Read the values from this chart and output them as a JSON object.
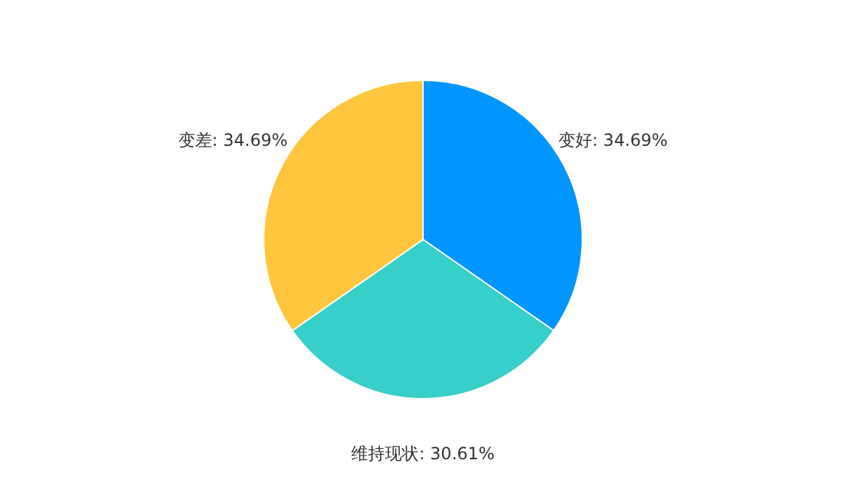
{
  "chart_data": {
    "type": "pie",
    "categories": [
      "变好",
      "维持现状",
      "变差"
    ],
    "values": [
      34.69,
      30.61,
      34.69
    ],
    "value_labels": [
      "34.69%",
      "30.61%",
      "34.69%"
    ],
    "colors": [
      "#0095ff",
      "#36cfc9",
      "#ffc53d"
    ]
  }
}
